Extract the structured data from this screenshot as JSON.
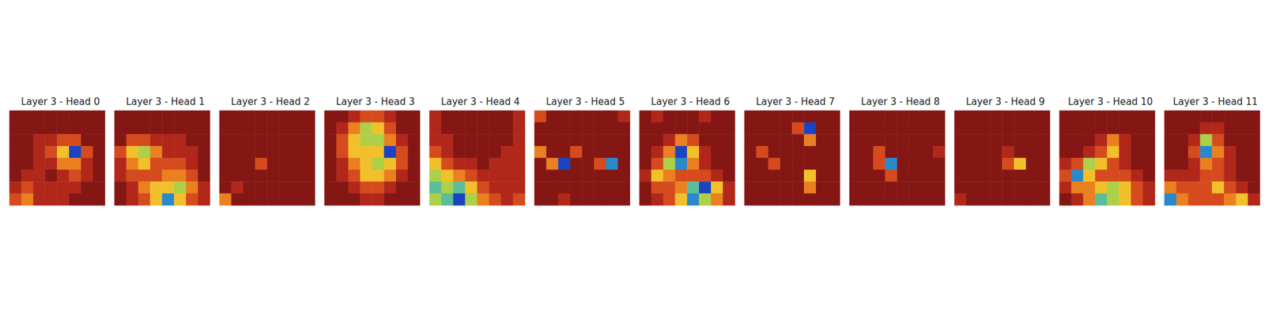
{
  "chart_data": [
    {
      "type": "heatmap",
      "title": "Layer 3 - Head 0",
      "zlim": [
        0,
        1
      ],
      "tick_labels": false,
      "cells": [
        [
          0.1,
          0.1,
          0.1,
          0.1,
          0.1,
          0.1,
          0.1,
          0.1
        ],
        [
          0.1,
          0.1,
          0.1,
          0.1,
          0.1,
          0.1,
          0.1,
          0.1
        ],
        [
          0.1,
          0.1,
          0.2,
          0.2,
          0.3,
          0.3,
          0.1,
          0.1
        ],
        [
          0.1,
          0.1,
          0.2,
          0.3,
          0.5,
          0.9,
          0.3,
          0.1
        ],
        [
          0.1,
          0.1,
          0.2,
          0.2,
          0.4,
          0.4,
          0.2,
          0.1
        ],
        [
          0.1,
          0.2,
          0.2,
          0.1,
          0.2,
          0.3,
          0.2,
          0.1
        ],
        [
          0.2,
          0.3,
          0.2,
          0.2,
          0.2,
          0.2,
          0.1,
          0.1
        ],
        [
          0.3,
          0.4,
          0.2,
          0.2,
          0.2,
          0.1,
          0.1,
          0.1
        ]
      ]
    },
    {
      "type": "heatmap",
      "title": "Layer 3 - Head 1",
      "zlim": [
        0,
        1
      ],
      "tick_labels": false,
      "cells": [
        [
          0.1,
          0.1,
          0.1,
          0.1,
          0.1,
          0.1,
          0.1,
          0.1
        ],
        [
          0.1,
          0.1,
          0.1,
          0.1,
          0.1,
          0.1,
          0.1,
          0.1
        ],
        [
          0.1,
          0.3,
          0.3,
          0.2,
          0.2,
          0.2,
          0.1,
          0.1
        ],
        [
          0.3,
          0.5,
          0.6,
          0.4,
          0.2,
          0.2,
          0.2,
          0.1
        ],
        [
          0.2,
          0.4,
          0.5,
          0.3,
          0.3,
          0.3,
          0.2,
          0.1
        ],
        [
          0.2,
          0.3,
          0.3,
          0.3,
          0.4,
          0.4,
          0.3,
          0.1
        ],
        [
          0.1,
          0.2,
          0.4,
          0.5,
          0.5,
          0.6,
          0.4,
          0.2
        ],
        [
          0.1,
          0.2,
          0.3,
          0.5,
          0.8,
          0.5,
          0.3,
          0.2
        ]
      ]
    },
    {
      "type": "heatmap",
      "title": "Layer 3 - Head 2",
      "zlim": [
        0,
        1
      ],
      "tick_labels": false,
      "cells": [
        [
          0.1,
          0.1,
          0.1,
          0.1,
          0.1,
          0.1,
          0.1,
          0.1
        ],
        [
          0.1,
          0.1,
          0.1,
          0.1,
          0.1,
          0.1,
          0.1,
          0.1
        ],
        [
          0.1,
          0.1,
          0.1,
          0.1,
          0.1,
          0.1,
          0.1,
          0.1
        ],
        [
          0.1,
          0.1,
          0.1,
          0.1,
          0.1,
          0.1,
          0.1,
          0.1
        ],
        [
          0.1,
          0.1,
          0.1,
          0.3,
          0.1,
          0.1,
          0.1,
          0.1
        ],
        [
          0.1,
          0.1,
          0.1,
          0.1,
          0.1,
          0.1,
          0.1,
          0.1
        ],
        [
          0.1,
          0.2,
          0.1,
          0.1,
          0.1,
          0.1,
          0.1,
          0.1
        ],
        [
          0.4,
          0.1,
          0.1,
          0.1,
          0.1,
          0.1,
          0.1,
          0.1
        ]
      ]
    },
    {
      "type": "heatmap",
      "title": "Layer 3 - Head 3",
      "zlim": [
        0,
        1
      ],
      "tick_labels": false,
      "cells": [
        [
          0.1,
          0.1,
          0.2,
          0.3,
          0.3,
          0.2,
          0.1,
          0.1
        ],
        [
          0.1,
          0.2,
          0.4,
          0.6,
          0.5,
          0.3,
          0.1,
          0.1
        ],
        [
          0.1,
          0.3,
          0.5,
          0.6,
          0.6,
          0.4,
          0.2,
          0.1
        ],
        [
          0.1,
          0.3,
          0.5,
          0.5,
          0.5,
          0.9,
          0.3,
          0.1
        ],
        [
          0.1,
          0.2,
          0.4,
          0.5,
          0.6,
          0.5,
          0.3,
          0.1
        ],
        [
          0.1,
          0.2,
          0.3,
          0.5,
          0.5,
          0.4,
          0.2,
          0.1
        ],
        [
          0.1,
          0.1,
          0.2,
          0.3,
          0.3,
          0.2,
          0.1,
          0.1
        ],
        [
          0.1,
          0.1,
          0.1,
          0.2,
          0.2,
          0.1,
          0.1,
          0.1
        ]
      ]
    },
    {
      "type": "heatmap",
      "title": "Layer 3 - Head 4",
      "zlim": [
        0,
        1
      ],
      "tick_labels": false,
      "cells": [
        [
          0.2,
          0.1,
          0.1,
          0.1,
          0.1,
          0.1,
          0.1,
          0.2
        ],
        [
          0.2,
          0.1,
          0.1,
          0.1,
          0.1,
          0.1,
          0.1,
          0.2
        ],
        [
          0.2,
          0.2,
          0.1,
          0.1,
          0.1,
          0.1,
          0.1,
          0.2
        ],
        [
          0.3,
          0.2,
          0.1,
          0.1,
          0.1,
          0.1,
          0.2,
          0.2
        ],
        [
          0.5,
          0.3,
          0.2,
          0.2,
          0.1,
          0.2,
          0.2,
          0.2
        ],
        [
          0.6,
          0.5,
          0.4,
          0.3,
          0.2,
          0.2,
          0.2,
          0.2
        ],
        [
          0.7,
          0.6,
          0.7,
          0.5,
          0.3,
          0.2,
          0.2,
          0.2
        ],
        [
          0.6,
          0.7,
          0.9,
          0.6,
          0.4,
          0.3,
          0.2,
          0.3
        ]
      ]
    },
    {
      "type": "heatmap",
      "title": "Layer 3 - Head 5",
      "zlim": [
        0,
        1
      ],
      "tick_labels": false,
      "cells": [
        [
          0.3,
          0.1,
          0.1,
          0.1,
          0.1,
          0.1,
          0.1,
          0.2
        ],
        [
          0.1,
          0.1,
          0.1,
          0.1,
          0.1,
          0.1,
          0.1,
          0.1
        ],
        [
          0.1,
          0.1,
          0.1,
          0.1,
          0.1,
          0.1,
          0.1,
          0.1
        ],
        [
          0.4,
          0.1,
          0.1,
          0.3,
          0.1,
          0.1,
          0.1,
          0.1
        ],
        [
          0.1,
          0.4,
          0.9,
          0.1,
          0.1,
          0.3,
          0.8,
          0.1
        ],
        [
          0.1,
          0.1,
          0.1,
          0.1,
          0.1,
          0.1,
          0.1,
          0.1
        ],
        [
          0.1,
          0.1,
          0.1,
          0.1,
          0.1,
          0.1,
          0.1,
          0.1
        ],
        [
          0.1,
          0.1,
          0.2,
          0.1,
          0.1,
          0.1,
          0.1,
          0.1
        ]
      ]
    },
    {
      "type": "heatmap",
      "title": "Layer 3 - Head 6",
      "zlim": [
        0,
        1
      ],
      "tick_labels": false,
      "cells": [
        [
          0.1,
          0.2,
          0.1,
          0.1,
          0.1,
          0.2,
          0.1,
          0.1
        ],
        [
          0.1,
          0.1,
          0.1,
          0.1,
          0.1,
          0.1,
          0.1,
          0.1
        ],
        [
          0.1,
          0.1,
          0.2,
          0.4,
          0.3,
          0.1,
          0.1,
          0.1
        ],
        [
          0.1,
          0.2,
          0.4,
          0.9,
          0.5,
          0.2,
          0.1,
          0.1
        ],
        [
          0.1,
          0.3,
          0.6,
          0.8,
          0.4,
          0.2,
          0.1,
          0.1
        ],
        [
          0.2,
          0.5,
          0.4,
          0.3,
          0.3,
          0.3,
          0.2,
          0.1
        ],
        [
          0.1,
          0.3,
          0.3,
          0.4,
          0.7,
          0.9,
          0.5,
          0.2
        ],
        [
          0.1,
          0.2,
          0.3,
          0.5,
          0.8,
          0.6,
          0.4,
          0.2
        ]
      ]
    },
    {
      "type": "heatmap",
      "title": "Layer 3 - Head 7",
      "zlim": [
        0,
        1
      ],
      "tick_labels": false,
      "cells": [
        [
          0.1,
          0.1,
          0.1,
          0.1,
          0.1,
          0.1,
          0.1,
          0.1
        ],
        [
          0.1,
          0.1,
          0.1,
          0.1,
          0.3,
          0.9,
          0.1,
          0.1
        ],
        [
          0.1,
          0.1,
          0.1,
          0.1,
          0.1,
          0.4,
          0.1,
          0.1
        ],
        [
          0.1,
          0.3,
          0.1,
          0.1,
          0.1,
          0.1,
          0.1,
          0.1
        ],
        [
          0.1,
          0.1,
          0.3,
          0.1,
          0.1,
          0.1,
          0.1,
          0.1
        ],
        [
          0.1,
          0.1,
          0.1,
          0.1,
          0.1,
          0.5,
          0.1,
          0.1
        ],
        [
          0.1,
          0.1,
          0.1,
          0.1,
          0.1,
          0.4,
          0.1,
          0.1
        ],
        [
          0.1,
          0.1,
          0.1,
          0.1,
          0.1,
          0.1,
          0.1,
          0.1
        ]
      ]
    },
    {
      "type": "heatmap",
      "title": "Layer 3 - Head 8",
      "zlim": [
        0,
        1
      ],
      "tick_labels": false,
      "cells": [
        [
          0.1,
          0.1,
          0.1,
          0.1,
          0.1,
          0.1,
          0.1,
          0.1
        ],
        [
          0.1,
          0.1,
          0.1,
          0.1,
          0.1,
          0.1,
          0.1,
          0.1
        ],
        [
          0.1,
          0.1,
          0.1,
          0.1,
          0.1,
          0.1,
          0.1,
          0.1
        ],
        [
          0.1,
          0.1,
          0.3,
          0.1,
          0.1,
          0.1,
          0.1,
          0.2
        ],
        [
          0.1,
          0.1,
          0.3,
          0.8,
          0.1,
          0.1,
          0.1,
          0.1
        ],
        [
          0.1,
          0.1,
          0.1,
          0.3,
          0.1,
          0.1,
          0.1,
          0.1
        ],
        [
          0.1,
          0.1,
          0.1,
          0.1,
          0.1,
          0.1,
          0.1,
          0.1
        ],
        [
          0.1,
          0.1,
          0.1,
          0.1,
          0.1,
          0.1,
          0.1,
          0.1
        ]
      ]
    },
    {
      "type": "heatmap",
      "title": "Layer 3 - Head 9",
      "zlim": [
        0,
        1
      ],
      "tick_labels": false,
      "cells": [
        [
          0.1,
          0.1,
          0.1,
          0.1,
          0.1,
          0.1,
          0.1,
          0.1
        ],
        [
          0.1,
          0.1,
          0.1,
          0.1,
          0.1,
          0.1,
          0.1,
          0.1
        ],
        [
          0.1,
          0.1,
          0.1,
          0.1,
          0.1,
          0.1,
          0.1,
          0.1
        ],
        [
          0.1,
          0.1,
          0.1,
          0.1,
          0.2,
          0.1,
          0.1,
          0.1
        ],
        [
          0.1,
          0.1,
          0.1,
          0.1,
          0.3,
          0.5,
          0.1,
          0.1
        ],
        [
          0.1,
          0.1,
          0.1,
          0.1,
          0.1,
          0.1,
          0.1,
          0.1
        ],
        [
          0.1,
          0.1,
          0.1,
          0.1,
          0.1,
          0.1,
          0.1,
          0.1
        ],
        [
          0.2,
          0.1,
          0.1,
          0.1,
          0.1,
          0.1,
          0.1,
          0.1
        ]
      ]
    },
    {
      "type": "heatmap",
      "title": "Layer 3 - Head 10",
      "zlim": [
        0,
        1
      ],
      "tick_labels": false,
      "cells": [
        [
          0.1,
          0.1,
          0.1,
          0.1,
          0.1,
          0.1,
          0.1,
          0.1
        ],
        [
          0.1,
          0.1,
          0.1,
          0.1,
          0.1,
          0.1,
          0.1,
          0.1
        ],
        [
          0.1,
          0.1,
          0.1,
          0.2,
          0.4,
          0.2,
          0.1,
          0.1
        ],
        [
          0.1,
          0.1,
          0.2,
          0.3,
          0.5,
          0.2,
          0.1,
          0.1
        ],
        [
          0.2,
          0.3,
          0.6,
          0.5,
          0.3,
          0.2,
          0.1,
          0.1
        ],
        [
          0.3,
          0.8,
          0.5,
          0.3,
          0.3,
          0.3,
          0.2,
          0.1
        ],
        [
          0.2,
          0.4,
          0.4,
          0.5,
          0.6,
          0.5,
          0.3,
          0.2
        ],
        [
          0.1,
          0.2,
          0.4,
          0.7,
          0.6,
          0.5,
          0.3,
          0.2
        ]
      ]
    },
    {
      "type": "heatmap",
      "title": "Layer 3 - Head 11",
      "zlim": [
        0,
        1
      ],
      "tick_labels": false,
      "cells": [
        [
          0.1,
          0.1,
          0.1,
          0.1,
          0.1,
          0.1,
          0.1,
          0.1
        ],
        [
          0.1,
          0.1,
          0.1,
          0.2,
          0.2,
          0.1,
          0.1,
          0.1
        ],
        [
          0.1,
          0.1,
          0.2,
          0.6,
          0.3,
          0.1,
          0.1,
          0.1
        ],
        [
          0.1,
          0.1,
          0.3,
          0.8,
          0.4,
          0.2,
          0.1,
          0.1
        ],
        [
          0.1,
          0.1,
          0.2,
          0.4,
          0.3,
          0.2,
          0.1,
          0.1
        ],
        [
          0.2,
          0.2,
          0.2,
          0.3,
          0.3,
          0.2,
          0.1,
          0.1
        ],
        [
          0.4,
          0.3,
          0.3,
          0.3,
          0.5,
          0.3,
          0.2,
          0.1
        ],
        [
          0.8,
          0.4,
          0.3,
          0.3,
          0.3,
          0.4,
          0.5,
          0.2
        ]
      ]
    }
  ]
}
